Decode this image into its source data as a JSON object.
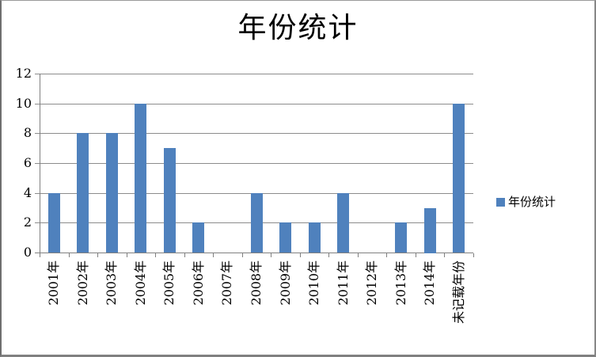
{
  "chart_data": {
    "type": "bar",
    "title": "年份统计",
    "legend": "年份统计",
    "legend_position": "right",
    "categories": [
      "2001年",
      "2002年",
      "2003年",
      "2004年",
      "2005年",
      "2006年",
      "2007年",
      "2008年",
      "2009年",
      "2010年",
      "2011年",
      "2012年",
      "2013年",
      "2014年",
      "未记载年份"
    ],
    "values": [
      4,
      8,
      8,
      10,
      7,
      2,
      0,
      4,
      2,
      2,
      4,
      0,
      2,
      3,
      10
    ],
    "series": [
      {
        "name": "年份统计",
        "values": [
          4,
          8,
          8,
          10,
          7,
          2,
          0,
          4,
          2,
          2,
          4,
          0,
          2,
          3,
          10
        ]
      }
    ],
    "xlabel": "",
    "ylabel": "",
    "ylim": [
      0,
      12
    ],
    "yticks": [
      0,
      2,
      4,
      6,
      8,
      10,
      12
    ],
    "grid": true,
    "colors": {
      "bar": "#4F81BD",
      "gridline": "#8C8C8C",
      "axis": "#808080",
      "frame": "#808080",
      "text": "#000000",
      "background": "#FFFFFF"
    }
  }
}
